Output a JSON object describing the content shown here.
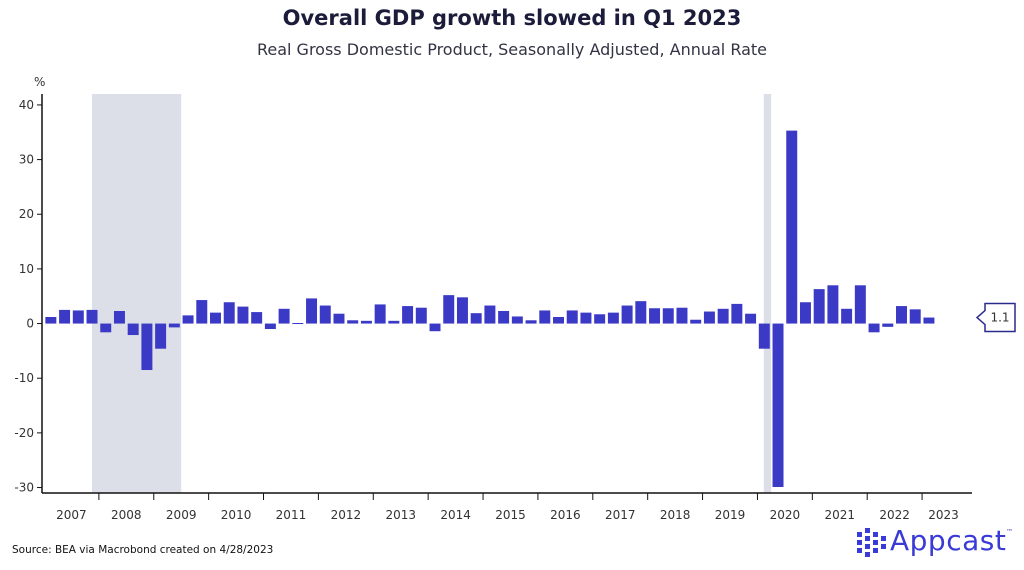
{
  "title": "Overall GDP growth slowed in Q1 2023",
  "subtitle": "Real Gross Domestic Product, Seasonally Adjusted, Annual Rate",
  "source": "Source: BEA via Macrobond created on 4/28/2023",
  "logo": {
    "text": "Appcast",
    "tm": "™",
    "icon": "appcast-dots-icon"
  },
  "colors": {
    "bar": "#3a3ac6",
    "recession": "#dcdfe8",
    "axis": "#111111"
  },
  "chart_data": {
    "type": "bar",
    "ylabel": "%",
    "ylim": [
      -31,
      42
    ],
    "yticks": [
      -30,
      -20,
      -10,
      0,
      10,
      20,
      30,
      40
    ],
    "grid": false,
    "years": [
      "2007",
      "2008",
      "2009",
      "2010",
      "2011",
      "2012",
      "2013",
      "2014",
      "2015",
      "2016",
      "2017",
      "2018",
      "2019",
      "2020",
      "2021",
      "2022",
      "2023"
    ],
    "categories": [
      "2007 Q1",
      "2007 Q2",
      "2007 Q3",
      "2007 Q4",
      "2008 Q1",
      "2008 Q2",
      "2008 Q3",
      "2008 Q4",
      "2009 Q1",
      "2009 Q2",
      "2009 Q3",
      "2009 Q4",
      "2010 Q1",
      "2010 Q2",
      "2010 Q3",
      "2010 Q4",
      "2011 Q1",
      "2011 Q2",
      "2011 Q3",
      "2011 Q4",
      "2012 Q1",
      "2012 Q2",
      "2012 Q3",
      "2012 Q4",
      "2013 Q1",
      "2013 Q2",
      "2013 Q3",
      "2013 Q4",
      "2014 Q1",
      "2014 Q2",
      "2014 Q3",
      "2014 Q4",
      "2015 Q1",
      "2015 Q2",
      "2015 Q3",
      "2015 Q4",
      "2016 Q1",
      "2016 Q2",
      "2016 Q3",
      "2016 Q4",
      "2017 Q1",
      "2017 Q2",
      "2017 Q3",
      "2017 Q4",
      "2018 Q1",
      "2018 Q2",
      "2018 Q3",
      "2018 Q4",
      "2019 Q1",
      "2019 Q2",
      "2019 Q3",
      "2019 Q4",
      "2020 Q1",
      "2020 Q2",
      "2020 Q3",
      "2020 Q4",
      "2021 Q1",
      "2021 Q2",
      "2021 Q3",
      "2021 Q4",
      "2022 Q1",
      "2022 Q2",
      "2022 Q3",
      "2022 Q4",
      "2023 Q1"
    ],
    "values": [
      1.2,
      2.5,
      2.4,
      2.5,
      -1.6,
      2.3,
      -2.1,
      -8.5,
      -4.6,
      -0.7,
      1.5,
      4.3,
      2.0,
      3.9,
      3.1,
      2.1,
      -1.0,
      2.7,
      0.1,
      4.6,
      3.3,
      1.8,
      0.6,
      0.5,
      3.5,
      0.5,
      3.2,
      2.9,
      -1.4,
      5.2,
      4.8,
      1.9,
      3.3,
      2.3,
      1.3,
      0.6,
      2.4,
      1.2,
      2.4,
      2.0,
      1.7,
      2.0,
      3.3,
      4.1,
      2.8,
      2.8,
      2.9,
      0.7,
      2.2,
      2.7,
      3.6,
      1.8,
      -4.6,
      -29.9,
      35.3,
      3.9,
      6.3,
      7.0,
      2.7,
      7.0,
      -1.6,
      -0.6,
      3.2,
      2.6,
      1.1
    ],
    "recessions": [
      {
        "start": "2007 Q4",
        "end": "2009 Q2"
      },
      {
        "start": "2020 Q1",
        "end": "2020 Q1"
      }
    ],
    "last_value_label": "1.1"
  }
}
